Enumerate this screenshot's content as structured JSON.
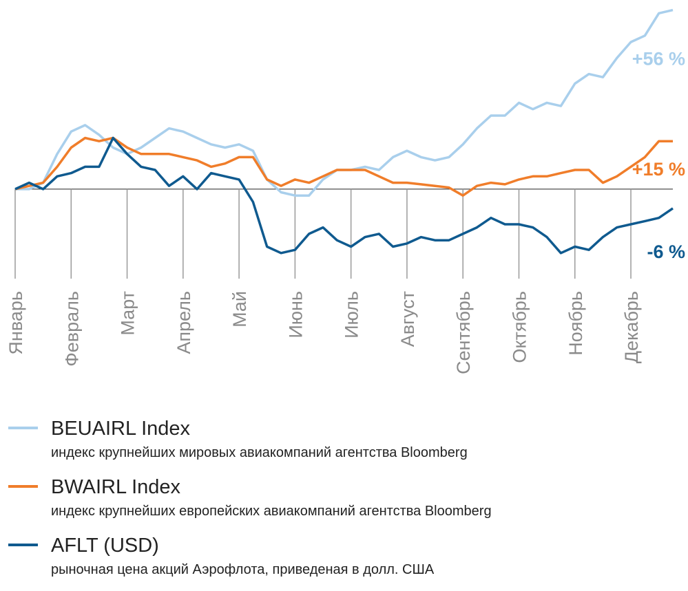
{
  "chart_data": {
    "type": "line",
    "categories": [
      "Январь",
      null,
      null,
      null,
      "Февраль",
      null,
      null,
      null,
      "Март",
      null,
      null,
      null,
      "Апрель",
      null,
      null,
      null,
      "Май",
      null,
      null,
      null,
      "Июнь",
      null,
      null,
      null,
      "Июль",
      null,
      null,
      null,
      "Август",
      null,
      null,
      null,
      "Сентябрь",
      null,
      null,
      null,
      "Октябрь",
      null,
      null,
      null,
      "Ноябрь",
      null,
      null,
      null,
      "Декабрь",
      null,
      null,
      null
    ],
    "ylim": [
      -28,
      57
    ],
    "series": [
      {
        "name": "BEUAIRL Index",
        "description": "индекс крупнейших мировых авиакомпаний агентства Bloomberg",
        "color": "#a9cfec",
        "end_label": "+56 %",
        "values": [
          0,
          0,
          2,
          11,
          18,
          20,
          17,
          13,
          11,
          13,
          16,
          19,
          18,
          16,
          14,
          13,
          14,
          12,
          3,
          -1,
          -2,
          -2,
          3,
          6,
          6,
          7,
          6,
          10,
          12,
          10,
          9,
          10,
          14,
          19,
          23,
          23,
          27,
          25,
          27,
          26,
          33,
          36,
          35,
          41,
          46,
          48,
          55,
          56
        ]
      },
      {
        "name": "BWAIRL Index",
        "description": "индекс крупнейших европейских авиакомпаний агентства Bloomberg",
        "color": "#f07d2a",
        "end_label": "+15 %",
        "values": [
          0,
          1,
          2,
          7,
          13,
          16,
          15,
          16,
          13,
          11,
          11,
          11,
          10,
          9,
          7,
          8,
          10,
          10,
          3,
          1,
          3,
          2,
          4,
          6,
          6,
          6,
          4,
          2,
          2,
          1.5,
          1,
          0.5,
          -2,
          1,
          2,
          1.5,
          3,
          4,
          4,
          5,
          6,
          6,
          2,
          4,
          7,
          10,
          15,
          15
        ]
      },
      {
        "name": "AFLT (USD)",
        "description": "рыночная цена акций Аэрофлота, приведеная в долл. США",
        "color": "#0f5a8f",
        "end_label": "-6 %",
        "values": [
          0,
          2,
          0,
          4,
          5,
          7,
          7,
          16,
          11,
          7,
          6,
          1,
          4,
          0,
          5,
          4,
          3,
          -4,
          -18,
          -20,
          -19,
          -14,
          -12,
          -16,
          -18,
          -15,
          -14,
          -18,
          -17,
          -15,
          -16,
          -16,
          -14,
          -12,
          -9,
          -11,
          -11,
          -12,
          -15,
          -20,
          -18,
          -19,
          -15,
          -12,
          -11,
          -10,
          -9,
          -6
        ]
      }
    ]
  }
}
